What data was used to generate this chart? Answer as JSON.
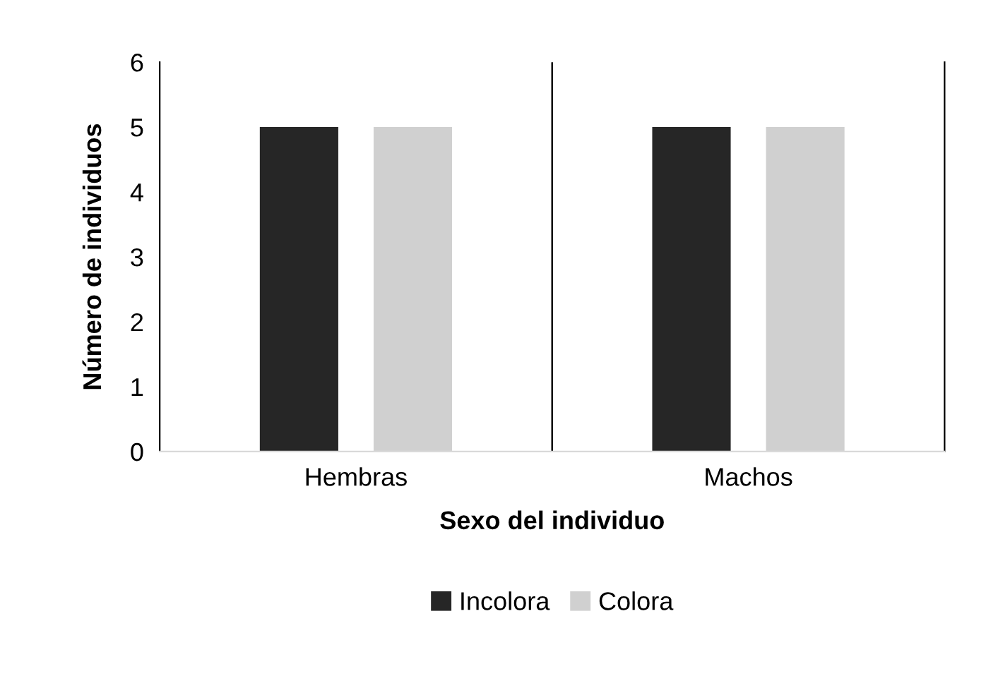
{
  "chart_data": {
    "type": "bar",
    "xlabel": "Sexo del individuo",
    "ylabel": "Número de individuos",
    "categories": [
      "Hembras",
      "Machos"
    ],
    "series": [
      {
        "name": "Incolora",
        "color": "#262626",
        "values": [
          5,
          5
        ]
      },
      {
        "name": "Colora",
        "color": "#d0d0d0",
        "values": [
          5,
          5
        ]
      }
    ],
    "ylim": [
      0,
      6
    ],
    "yticks": [
      0,
      1,
      2,
      3,
      4,
      5,
      6
    ],
    "grid": "x",
    "legend": "bottom"
  }
}
